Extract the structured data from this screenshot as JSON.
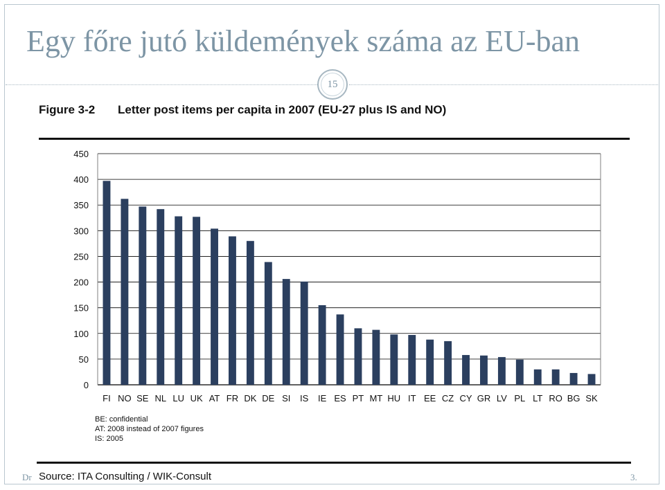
{
  "slide": {
    "title": "Egy főre jutó küldemények száma az EU-ban",
    "page_number": "15",
    "footer_left": "Dr",
    "footer_right": "3."
  },
  "figure": {
    "label": "Figure 3-2",
    "caption": "Letter post items per capita in 2007 (EU-27 plus IS and NO)",
    "notes": [
      "BE: confidential",
      "AT: 2008 instead of 2007 figures",
      "IS: 2005"
    ],
    "source": "Source: ITA Consulting / WIK-Consult"
  },
  "colors": {
    "bar": "#2b3f5f",
    "title": "#7d95a5",
    "grid": "#000000"
  },
  "chart_data": {
    "type": "bar",
    "title": "Letter post items per capita in 2007 (EU-27 plus IS and NO)",
    "xlabel": "",
    "ylabel": "",
    "categories": [
      "FI",
      "NO",
      "SE",
      "NL",
      "LU",
      "UK",
      "AT",
      "FR",
      "DK",
      "DE",
      "SI",
      "IS",
      "IE",
      "ES",
      "PT",
      "MT",
      "HU",
      "IT",
      "EE",
      "CZ",
      "CY",
      "GR",
      "LV",
      "PL",
      "LT",
      "RO",
      "BG",
      "SK"
    ],
    "values": [
      397,
      362,
      347,
      342,
      328,
      327,
      304,
      289,
      280,
      239,
      206,
      201,
      155,
      137,
      110,
      107,
      98,
      97,
      88,
      85,
      58,
      57,
      54,
      49,
      30,
      30,
      23,
      21
    ],
    "ylim": [
      0,
      450
    ],
    "yticks": [
      0,
      50,
      100,
      150,
      200,
      250,
      300,
      350,
      400,
      450
    ],
    "grid": true,
    "legend": "none"
  }
}
